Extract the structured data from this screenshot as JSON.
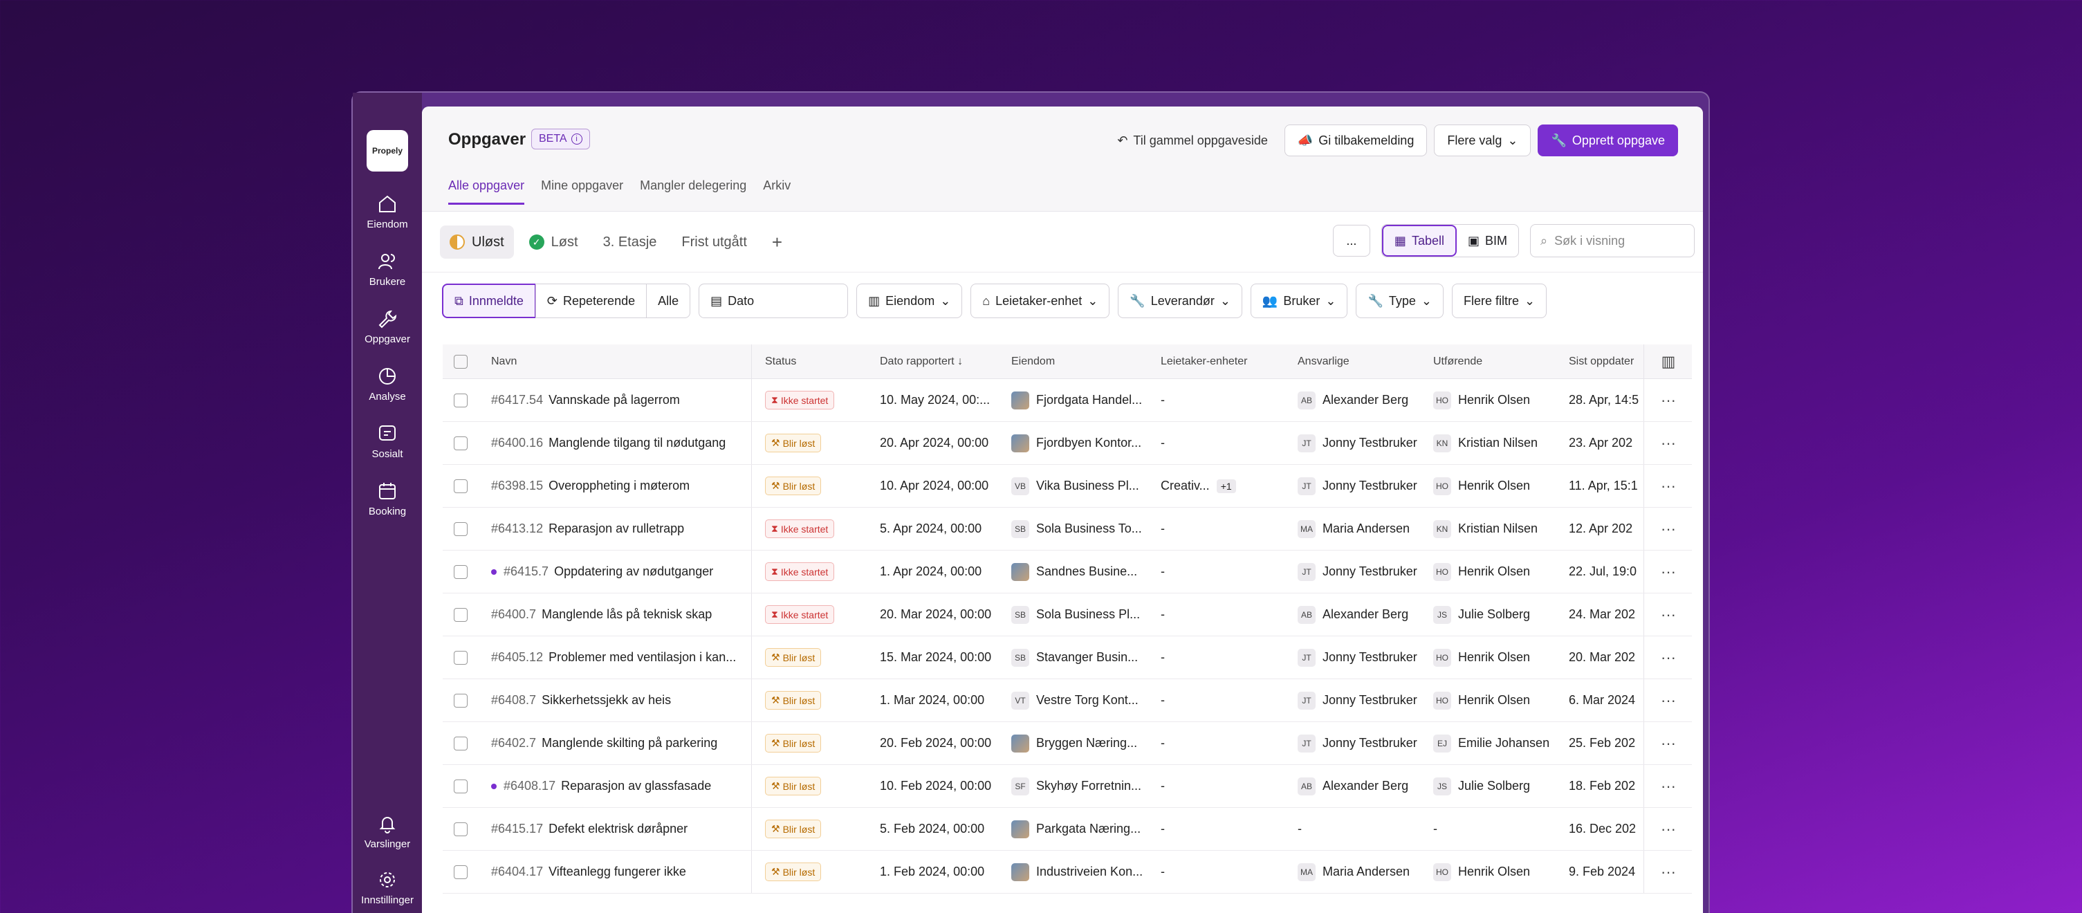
{
  "sidebar": {
    "logo": "Propely",
    "items": [
      {
        "label": "Eiendom",
        "icon": "home-icon"
      },
      {
        "label": "Brukere",
        "icon": "users-icon"
      },
      {
        "label": "Oppgaver",
        "icon": "wrench-icon"
      },
      {
        "label": "Analyse",
        "icon": "pie-chart-icon"
      },
      {
        "label": "Sosialt",
        "icon": "chat-icon"
      },
      {
        "label": "Booking",
        "icon": "calendar-icon"
      }
    ],
    "bottom": [
      {
        "label": "Varslinger",
        "icon": "bell-icon"
      },
      {
        "label": "Innstillinger",
        "icon": "gear-icon"
      }
    ]
  },
  "header": {
    "title": "Oppgaver",
    "beta": "BETA",
    "old_page": "Til gammel oppgaveside",
    "feedback": "Gi tilbakemelding",
    "more_options": "Flere valg",
    "create": "Opprett oppgave"
  },
  "tabs": [
    "Alle oppgaver",
    "Mine oppgaver",
    "Mangler delegering",
    "Arkiv"
  ],
  "views": [
    "Uløst",
    "Løst",
    "3. Etasje",
    "Frist utgått"
  ],
  "view_modes": {
    "more": "...",
    "table": "Tabell",
    "bim": "BIM"
  },
  "search": {
    "placeholder": "Søk i visning"
  },
  "filters": {
    "innmeldte": "Innmeldte",
    "repeterende": "Repeterende",
    "alle": "Alle",
    "dato": "Dato",
    "eiendom": "Eiendom",
    "leietaker": "Leietaker-enhet",
    "leverandor": "Leverandør",
    "bruker": "Bruker",
    "type": "Type",
    "flere": "Flere filtre"
  },
  "columns": {
    "name": "Navn",
    "status": "Status",
    "date": "Dato rapportert",
    "property": "Eiendom",
    "tenant": "Leietaker-enheter",
    "responsible": "Ansvarlige",
    "executor": "Utførende",
    "updated": "Sist oppdater"
  },
  "rows": [
    {
      "id": "#6417.54",
      "name": "Vannskade på lagerrom",
      "status": "Ikke startet",
      "st": "red",
      "date": "10. May 2024, 00:...",
      "prop": "Fjordgata Handel...",
      "pi": "",
      "tenant": "-",
      "ri": "AB",
      "resp": "Alexander Berg",
      "ei": "HO",
      "exec": "Henrik Olsen",
      "upd": "28. Apr, 14:5",
      "dot": false
    },
    {
      "id": "#6400.16",
      "name": "Manglende tilgang til nødutgang",
      "status": "Blir løst",
      "st": "orange",
      "date": "20. Apr 2024, 00:00",
      "prop": "Fjordbyen Kontor...",
      "pi": "",
      "tenant": "-",
      "ri": "JT",
      "resp": "Jonny Testbruker",
      "ei": "KN",
      "exec": "Kristian Nilsen",
      "upd": "23. Apr 202",
      "dot": false
    },
    {
      "id": "#6398.15",
      "name": "Overoppheting i møterom",
      "status": "Blir løst",
      "st": "orange",
      "date": "10. Apr 2024, 00:00",
      "prop": "Vika Business Pl...",
      "pi": "VB",
      "tenant": "Creativ...",
      "plus": "+1",
      "ri": "JT",
      "resp": "Jonny Testbruker",
      "ei": "HO",
      "exec": "Henrik Olsen",
      "upd": "11. Apr, 15:1",
      "dot": false
    },
    {
      "id": "#6413.12",
      "name": "Reparasjon av rulletrapp",
      "status": "Ikke startet",
      "st": "red",
      "date": "5. Apr 2024, 00:00",
      "prop": "Sola Business To...",
      "pi": "SB",
      "tenant": "-",
      "ri": "MA",
      "resp": "Maria Andersen",
      "ei": "KN",
      "exec": "Kristian Nilsen",
      "upd": "12. Apr 202",
      "dot": false
    },
    {
      "id": "#6415.7",
      "name": "Oppdatering av nødutganger",
      "status": "Ikke startet",
      "st": "red",
      "date": "1. Apr 2024, 00:00",
      "prop": "Sandnes Busine...",
      "pi": "",
      "tenant": "-",
      "ri": "JT",
      "resp": "Jonny Testbruker",
      "ei": "HO",
      "exec": "Henrik Olsen",
      "upd": "22. Jul, 19:0",
      "dot": true
    },
    {
      "id": "#6400.7",
      "name": "Manglende lås på teknisk skap",
      "status": "Ikke startet",
      "st": "red",
      "date": "20. Mar 2024, 00:00",
      "prop": "Sola Business Pl...",
      "pi": "SB",
      "tenant": "-",
      "ri": "AB",
      "resp": "Alexander Berg",
      "ei": "JS",
      "exec": "Julie Solberg",
      "upd": "24. Mar 202",
      "dot": false
    },
    {
      "id": "#6405.12",
      "name": "Problemer med ventilasjon i kan...",
      "status": "Blir løst",
      "st": "orange",
      "date": "15. Mar 2024, 00:00",
      "prop": "Stavanger Busin...",
      "pi": "SB",
      "tenant": "-",
      "ri": "JT",
      "resp": "Jonny Testbruker",
      "ei": "HO",
      "exec": "Henrik Olsen",
      "upd": "20. Mar 202",
      "dot": false
    },
    {
      "id": "#6408.7",
      "name": "Sikkerhetssjekk av heis",
      "status": "Blir løst",
      "st": "orange",
      "date": "1. Mar 2024, 00:00",
      "prop": "Vestre Torg Kont...",
      "pi": "VT",
      "tenant": "-",
      "ri": "JT",
      "resp": "Jonny Testbruker",
      "ei": "HO",
      "exec": "Henrik Olsen",
      "upd": "6. Mar 2024",
      "dot": false
    },
    {
      "id": "#6402.7",
      "name": "Manglende skilting på parkering",
      "status": "Blir løst",
      "st": "orange",
      "date": "20. Feb 2024, 00:00",
      "prop": "Bryggen Næring...",
      "pi": "",
      "tenant": "-",
      "ri": "JT",
      "resp": "Jonny Testbruker",
      "ei": "EJ",
      "exec": "Emilie Johansen",
      "upd": "25. Feb 202",
      "dot": false
    },
    {
      "id": "#6408.17",
      "name": "Reparasjon av glassfasade",
      "status": "Blir løst",
      "st": "orange",
      "date": "10. Feb 2024, 00:00",
      "prop": "Skyhøy Forretnin...",
      "pi": "SF",
      "tenant": "-",
      "ri": "AB",
      "resp": "Alexander Berg",
      "ei": "JS",
      "exec": "Julie Solberg",
      "upd": "18. Feb 202",
      "dot": true
    },
    {
      "id": "#6415.17",
      "name": "Defekt elektrisk døråpner",
      "status": "Blir løst",
      "st": "orange",
      "date": "5. Feb 2024, 00:00",
      "prop": "Parkgata Næring...",
      "pi": "",
      "tenant": "-",
      "ri": "",
      "resp": "-",
      "ei": "",
      "exec": "-",
      "upd": "16. Dec 202",
      "dot": false
    },
    {
      "id": "#6404.17",
      "name": "Vifteanlegg fungerer ikke",
      "status": "Blir løst",
      "st": "orange",
      "date": "1. Feb 2024, 00:00",
      "prop": "Industriveien Kon...",
      "pi": "",
      "tenant": "-",
      "ri": "MA",
      "resp": "Maria Andersen",
      "ei": "HO",
      "exec": "Henrik Olsen",
      "upd": "9. Feb 2024",
      "dot": false
    }
  ]
}
